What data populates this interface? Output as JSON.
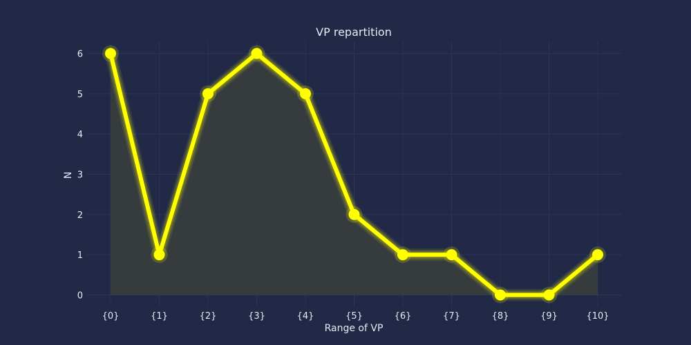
{
  "chart_data": {
    "type": "line",
    "title": "VP repartition",
    "xlabel": "Range of VP",
    "ylabel": "N",
    "categories": [
      "{0}",
      "{1}",
      "{2}",
      "{3}",
      "{4}",
      "{5}",
      "{6}",
      "{7}",
      "{8}",
      "{9}",
      "{10}"
    ],
    "series": [
      {
        "values": [
          6,
          1,
          5,
          6,
          5,
          2,
          1,
          1,
          0,
          0,
          1
        ]
      }
    ],
    "ylim": [
      -0.3,
      6.3
    ],
    "yticks": [
      0,
      1,
      2,
      3,
      4,
      5,
      6
    ],
    "grid": true,
    "filled_area": true,
    "colors": {
      "background": "#212946",
      "grid": "#2a3459",
      "line": "#ffff00",
      "area": "#3a3f3d",
      "text": "#e8eaf2"
    }
  }
}
